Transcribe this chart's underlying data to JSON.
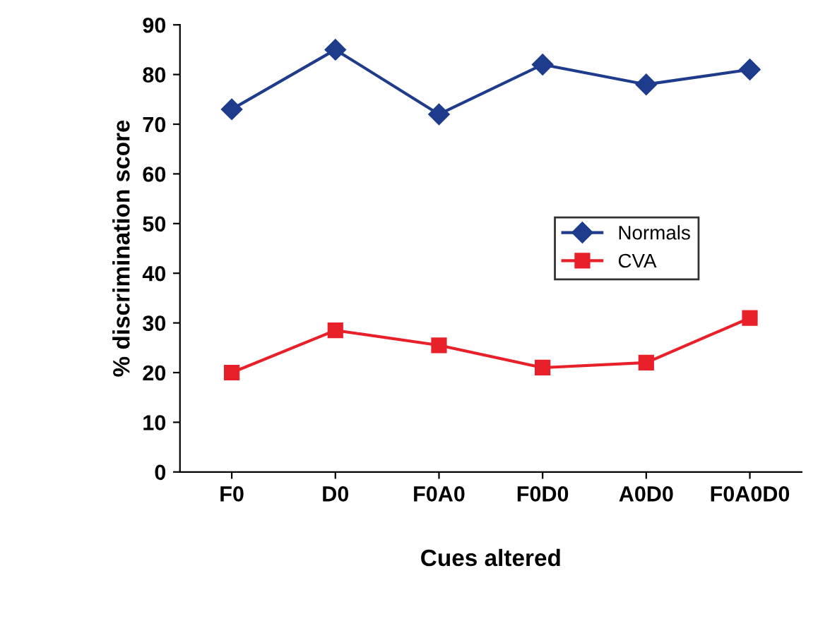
{
  "chart_data": {
    "type": "line",
    "xlabel": "Cues altered",
    "ylabel": "% discrimination score",
    "categories": [
      "F0",
      "D0",
      "F0A0",
      "F0D0",
      "A0D0",
      "F0A0D0"
    ],
    "series": [
      {
        "name": "Normals",
        "color": "#1f3c8c",
        "marker": "diamond",
        "values": [
          73,
          85,
          72,
          82,
          78,
          81
        ]
      },
      {
        "name": "CVA",
        "color": "#e8202a",
        "marker": "square",
        "values": [
          20,
          28.5,
          25.5,
          21,
          22,
          31
        ]
      }
    ],
    "ylim": [
      0,
      90
    ],
    "yticks": [
      0,
      10,
      20,
      30,
      40,
      50,
      60,
      70,
      80,
      90
    ],
    "grid": false,
    "legend": "center right",
    "line_style": "solid"
  }
}
